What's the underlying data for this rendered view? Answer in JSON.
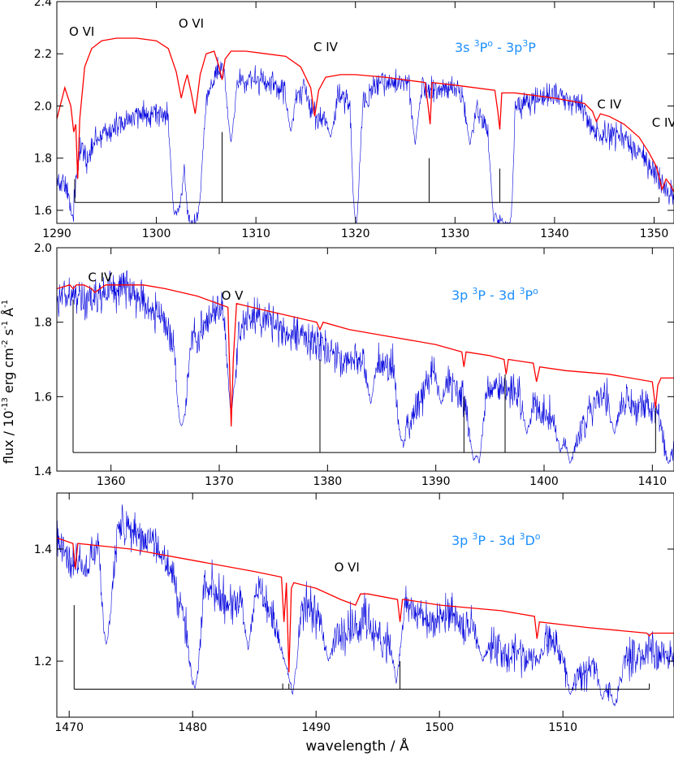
{
  "figure": {
    "xlabel": "wavelength / Å",
    "ylabel": "flux / 10",
    "ylabel_exp1": "-13",
    "ylabel_mid": " erg cm",
    "ylabel_exp2": "-2",
    "ylabel_mid2": " s",
    "ylabel_exp3": "-1",
    "ylabel_end": " Å",
    "ylabel_exp4": "-1"
  },
  "colors": {
    "observed": "#0000dd",
    "model": "#ff0000",
    "label": "#1e90ff",
    "axis": "#000000"
  },
  "chart_data": [
    {
      "type": "line",
      "xlim": [
        1290,
        1352
      ],
      "ylim": [
        1.55,
        2.4
      ],
      "xticks": [
        1290,
        1300,
        1310,
        1320,
        1330,
        1340,
        1350
      ],
      "yticks": [
        1.6,
        1.8,
        2.0,
        2.2,
        2.4
      ],
      "yticklabels": [
        "1.6",
        "1.8",
        "2.0",
        "2.2",
        "2.4"
      ],
      "multiplet": {
        "parts": [
          "3s ",
          "3",
          "P",
          "o",
          " - 3p",
          "3",
          "P"
        ]
      },
      "ions": [
        {
          "text": "O VI",
          "x": 1292.5,
          "y": 2.27
        },
        {
          "text": "O VI",
          "x": 1303.5,
          "y": 2.3
        },
        {
          "text": "C IV",
          "x": 1317.0,
          "y": 2.21
        },
        {
          "text": "C IV",
          "x": 1345.5,
          "y": 1.99
        },
        {
          "text": "C IV",
          "x": 1351.0,
          "y": 1.92
        }
      ],
      "line_positions": {
        "base_y": 1.63,
        "x_start": 1291.8,
        "x_end": 1350.5,
        "ticks": [
          {
            "x": 1291.8,
            "y": 1.72
          },
          {
            "x": 1306.6,
            "y": 1.9
          },
          {
            "x": 1327.4,
            "y": 1.8
          },
          {
            "x": 1334.5,
            "y": 1.76
          },
          {
            "x": 1350.5,
            "y": 1.65
          }
        ]
      },
      "model": {
        "x": [
          1290,
          1290.8,
          1291.4,
          1291.7,
          1291.9,
          1292.1,
          1292.3,
          1292.8,
          1293.5,
          1294.5,
          1296,
          1298,
          1300,
          1301.2,
          1302,
          1302.5,
          1302.8,
          1303.1,
          1303.5,
          1303.9,
          1304.4,
          1305,
          1305.8,
          1306.3,
          1306.6,
          1306.9,
          1307.5,
          1309,
          1311,
          1313,
          1314.5,
          1315.5,
          1315.9,
          1316.3,
          1317,
          1318.5,
          1320,
          1323,
          1327,
          1327.3,
          1327.5,
          1327.7,
          1330,
          1334,
          1334.3,
          1334.5,
          1334.7,
          1336,
          1340,
          1343,
          1343.8,
          1344.2,
          1344.6,
          1345.5,
          1347,
          1348.5,
          1349.5,
          1350.2,
          1350.5,
          1350.8,
          1351.2,
          1351.6,
          1352
        ],
        "y": [
          1.95,
          2.07,
          2.0,
          1.9,
          1.93,
          1.72,
          1.95,
          2.15,
          2.22,
          2.25,
          2.26,
          2.26,
          2.25,
          2.22,
          2.13,
          2.03,
          2.08,
          2.12,
          2.05,
          1.97,
          2.12,
          2.2,
          2.21,
          2.15,
          2.1,
          2.18,
          2.21,
          2.21,
          2.2,
          2.19,
          2.15,
          2.07,
          1.96,
          2.06,
          2.11,
          2.12,
          2.12,
          2.11,
          2.09,
          2.0,
          1.93,
          2.09,
          2.08,
          2.06,
          1.98,
          1.91,
          2.05,
          2.05,
          2.03,
          2.01,
          1.98,
          1.94,
          1.97,
          1.96,
          1.93,
          1.88,
          1.82,
          1.77,
          1.73,
          1.68,
          1.72,
          1.7,
          1.67
        ]
      },
      "observed": {
        "knots_x": [
          1290,
          1291,
          1291.6,
          1292,
          1292.5,
          1293,
          1294,
          1296,
          1298,
          1300,
          1301.5,
          1302,
          1302.4,
          1302.8,
          1303.3,
          1303.8,
          1304.2,
          1304.6,
          1305.2,
          1306,
          1306.8,
          1307.3,
          1308,
          1310,
          1312,
          1315,
          1316,
          1317,
          1318.5,
          1319.5,
          1320,
          1320.4,
          1322,
          1325,
          1327.5,
          1330,
          1333.8,
          1334.3,
          1334.7,
          1335.2,
          1335.6,
          1336,
          1340,
          1343,
          1344,
          1347,
          1349,
          1350.5,
          1351.5,
          1352
        ],
        "knots_y": [
          1.72,
          1.68,
          1.58,
          1.75,
          1.85,
          1.78,
          1.88,
          1.92,
          1.96,
          1.98,
          1.95,
          1.6,
          1.62,
          1.8,
          1.55,
          1.55,
          1.58,
          1.9,
          2.05,
          2.13,
          2.12,
          2.06,
          2.1,
          2.1,
          2.07,
          2.05,
          1.95,
          1.95,
          2.05,
          2.0,
          1.6,
          2.0,
          2.08,
          2.1,
          2.05,
          2.07,
          1.9,
          1.55,
          1.62,
          1.55,
          1.6,
          2.0,
          2.05,
          1.98,
          1.9,
          1.88,
          1.8,
          1.72,
          1.67,
          1.65
        ],
        "noise": 0.035,
        "dips": [
          [
            1301.8,
            1.58
          ],
          [
            1303.4,
            1.58
          ],
          [
            1304.2,
            1.62
          ],
          [
            1307.5,
            1.86
          ],
          [
            1313.5,
            1.9
          ],
          [
            1317.5,
            1.88
          ],
          [
            1320.1,
            1.55
          ],
          [
            1326.0,
            1.85
          ],
          [
            1331.5,
            1.85
          ],
          [
            1333.9,
            1.55
          ],
          [
            1334.9,
            1.55
          ],
          [
            1335.4,
            1.55
          ]
        ]
      }
    },
    {
      "type": "line",
      "xlim": [
        1355,
        1412
      ],
      "ylim": [
        1.4,
        2.0
      ],
      "xticks": [
        1360,
        1370,
        1380,
        1390,
        1400,
        1410
      ],
      "yticks": [
        1.4,
        1.6,
        1.8,
        2.0
      ],
      "yticklabels": [
        "1.4",
        "1.6",
        "1.8",
        "2.0"
      ],
      "multiplet": {
        "parts": [
          "3p ",
          "3",
          "P - 3d ",
          "3",
          "P",
          "o"
        ]
      },
      "ions": [
        {
          "text": "C IV",
          "x": 1359.0,
          "y": 1.91
        },
        {
          "text": "O V",
          "x": 1371.2,
          "y": 1.86
        }
      ],
      "line_positions": {
        "base_y": 1.45,
        "x_start": 1356.5,
        "x_end": 1410.3,
        "ticks": [
          {
            "x": 1356.5,
            "y": 1.86
          },
          {
            "x": 1371.6,
            "y": 1.47
          },
          {
            "x": 1379.3,
            "y": 1.7
          },
          {
            "x": 1392.6,
            "y": 1.6
          },
          {
            "x": 1396.4,
            "y": 1.66
          },
          {
            "x": 1410.3,
            "y": 1.57
          }
        ]
      },
      "model": {
        "x": [
          1355,
          1356.2,
          1356.5,
          1356.8,
          1357.5,
          1358.2,
          1358.5,
          1359.5,
          1361,
          1363,
          1365,
          1368,
          1370.8,
          1371.1,
          1371.3,
          1371.6,
          1373,
          1376,
          1379,
          1379.3,
          1379.6,
          1382,
          1386,
          1390,
          1392.4,
          1392.6,
          1392.8,
          1395,
          1396.3,
          1396.5,
          1396.7,
          1399,
          1399.3,
          1399.6,
          1402,
          1406,
          1410,
          1410.3,
          1410.5,
          1410.8,
          1412
        ],
        "y": [
          1.89,
          1.9,
          1.89,
          1.9,
          1.9,
          1.89,
          1.88,
          1.9,
          1.9,
          1.9,
          1.89,
          1.87,
          1.84,
          1.52,
          1.7,
          1.85,
          1.84,
          1.82,
          1.8,
          1.78,
          1.8,
          1.78,
          1.76,
          1.74,
          1.72,
          1.68,
          1.72,
          1.71,
          1.7,
          1.66,
          1.7,
          1.69,
          1.64,
          1.68,
          1.67,
          1.66,
          1.64,
          1.57,
          1.63,
          1.65,
          1.65
        ]
      },
      "observed": {
        "knots_x": [
          1355,
          1358,
          1361,
          1363,
          1365,
          1366,
          1366.6,
          1367.5,
          1369,
          1370,
          1371.5,
          1373,
          1375,
          1378,
          1382,
          1386,
          1387,
          1390,
          1392,
          1393.5,
          1394,
          1396,
          1398,
          1400,
          1402,
          1403,
          1405,
          1407,
          1409,
          1410.5,
          1411.5,
          1412
        ],
        "knots_y": [
          1.88,
          1.86,
          1.9,
          1.86,
          1.8,
          1.7,
          1.55,
          1.76,
          1.8,
          1.85,
          1.75,
          1.82,
          1.8,
          1.75,
          1.7,
          1.68,
          1.5,
          1.68,
          1.62,
          1.52,
          1.6,
          1.62,
          1.6,
          1.55,
          1.52,
          1.48,
          1.6,
          1.58,
          1.57,
          1.55,
          1.48,
          1.47
        ],
        "noise": 0.035,
        "dips": [
          [
            1366.5,
            1.52
          ],
          [
            1371.1,
            1.54
          ],
          [
            1384.0,
            1.58
          ],
          [
            1386.9,
            1.48
          ],
          [
            1390.5,
            1.58
          ],
          [
            1393.5,
            1.43
          ],
          [
            1394.0,
            1.42
          ],
          [
            1398.4,
            1.5
          ],
          [
            1401.5,
            1.45
          ],
          [
            1402.4,
            1.42
          ],
          [
            1406.5,
            1.5
          ],
          [
            1411.5,
            1.42
          ]
        ]
      }
    },
    {
      "type": "line",
      "xlim": [
        1469,
        1519
      ],
      "ylim": [
        1.1,
        1.5
      ],
      "xticks": [
        1470,
        1480,
        1490,
        1500,
        1510
      ],
      "yticks": [
        1.2,
        1.4
      ],
      "yticklabels": [
        "1.2",
        "1.4"
      ],
      "multiplet": {
        "parts": [
          "3p ",
          "3",
          "P - 3d ",
          "3",
          "D",
          "o"
        ]
      },
      "ions": [
        {
          "text": "O VI",
          "x": 1492.5,
          "y": 1.36
        }
      ],
      "line_positions": {
        "base_y": 1.15,
        "x_start": 1470.4,
        "x_end": 1517.0,
        "ticks": [
          {
            "x": 1470.4,
            "y": 1.3
          },
          {
            "x": 1487.3,
            "y": 1.16
          },
          {
            "x": 1487.8,
            "y": 1.16
          },
          {
            "x": 1496.8,
            "y": 1.2
          },
          {
            "x": 1517.0,
            "y": 1.16
          }
        ]
      },
      "model": {
        "x": [
          1469,
          1470.3,
          1470.5,
          1470.7,
          1475,
          1480,
          1485,
          1487.2,
          1487.4,
          1487.6,
          1487.8,
          1488.0,
          1488.2,
          1490,
          1492,
          1493.2,
          1493.6,
          1494.2,
          1496.6,
          1496.8,
          1497,
          1497.2,
          1500,
          1505,
          1507.7,
          1507.9,
          1508.1,
          1512,
          1516.8,
          1517.0,
          1517.2,
          1519
        ],
        "y": [
          1.42,
          1.41,
          1.365,
          1.41,
          1.4,
          1.38,
          1.36,
          1.35,
          1.27,
          1.34,
          1.18,
          1.33,
          1.34,
          1.33,
          1.31,
          1.3,
          1.32,
          1.32,
          1.31,
          1.27,
          1.31,
          1.31,
          1.3,
          1.29,
          1.28,
          1.24,
          1.27,
          1.26,
          1.25,
          1.245,
          1.25,
          1.25
        ]
      },
      "observed": {
        "knots_x": [
          1469,
          1470,
          1471.5,
          1472.5,
          1473,
          1474,
          1476,
          1478,
          1479,
          1480,
          1481,
          1483,
          1485,
          1487,
          1488,
          1489,
          1490,
          1492,
          1494,
          1495.5,
          1497,
          1499,
          1501,
          1503,
          1505,
          1507,
          1509,
          1511,
          1513,
          1514,
          1515,
          1517,
          1519
        ],
        "knots_y": [
          1.42,
          1.38,
          1.36,
          1.42,
          1.28,
          1.44,
          1.42,
          1.38,
          1.3,
          1.2,
          1.35,
          1.3,
          1.34,
          1.25,
          1.22,
          1.3,
          1.28,
          1.25,
          1.28,
          1.22,
          1.3,
          1.27,
          1.28,
          1.25,
          1.22,
          1.2,
          1.25,
          1.18,
          1.2,
          1.15,
          1.2,
          1.22,
          1.2
        ],
        "noise": 0.025,
        "dips": [
          [
            1473.0,
            1.23
          ],
          [
            1480.2,
            1.15
          ],
          [
            1484.5,
            1.22
          ],
          [
            1487.5,
            1.2
          ],
          [
            1488.1,
            1.14
          ],
          [
            1491.0,
            1.2
          ],
          [
            1496.5,
            1.16
          ],
          [
            1503.5,
            1.2
          ],
          [
            1508.0,
            1.2
          ],
          [
            1510.6,
            1.14
          ],
          [
            1513.2,
            1.13
          ],
          [
            1514.2,
            1.12
          ]
        ]
      }
    }
  ]
}
